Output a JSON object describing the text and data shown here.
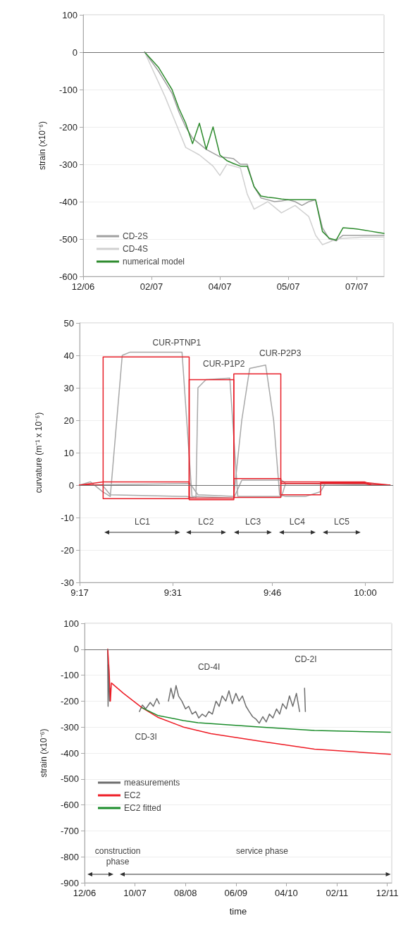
{
  "chart_data": [
    {
      "type": "line",
      "ylabel": "strain (x10⁻⁶)",
      "ylim": [
        -600,
        100
      ],
      "categories": [
        "12/06",
        null,
        null,
        null,
        null,
        null,
        null,
        null,
        null,
        null,
        "02/07",
        null,
        null,
        null,
        null,
        null,
        null,
        null,
        null,
        null,
        "04/07",
        null,
        null,
        null,
        null,
        null,
        null,
        null,
        null,
        null,
        "05/07",
        null,
        null,
        null,
        null,
        null,
        null,
        null,
        null,
        null,
        "07/07",
        null,
        null,
        null,
        null
      ],
      "yticks": [
        -600,
        -500,
        -400,
        -300,
        -200,
        -100,
        0,
        100
      ],
      "grid": "y",
      "legend": "bottom left",
      "marker": "none",
      "line_style": "solid",
      "ref_lines": [
        {
          "axis": "y",
          "value": 0,
          "label": null,
          "color": "#707070"
        }
      ],
      "series": [
        {
          "name": "CD-2S",
          "color": "#a0a0a0",
          "values": [
            null,
            null,
            null,
            null,
            null,
            null,
            null,
            null,
            null,
            0,
            -25,
            -50,
            -80,
            -110,
            -160,
            -200,
            -230,
            -245,
            -260,
            -270,
            -280,
            -282,
            -285,
            -300,
            -300,
            -360,
            -390,
            -395,
            -400,
            -398,
            -395,
            -400,
            -410,
            -400,
            -395,
            -470,
            -500,
            -505,
            -490,
            -490,
            -490,
            -490,
            -490,
            -490,
            -490
          ]
        },
        {
          "name": "CD-4S",
          "color": "#d0d0d0",
          "values": [
            null,
            null,
            null,
            null,
            null,
            null,
            null,
            null,
            null,
            0,
            -40,
            -80,
            -120,
            -165,
            -210,
            -255,
            -265,
            -275,
            -290,
            -305,
            -330,
            -300,
            -305,
            -310,
            -380,
            -420,
            -410,
            -400,
            -415,
            -430,
            -420,
            -410,
            -425,
            -440,
            -490,
            -515,
            -508,
            -500,
            -498,
            -497,
            -496,
            -495,
            -495,
            -495,
            -495
          ]
        },
        {
          "name": "numerical model",
          "color": "#2e8b2e",
          "values": [
            null,
            null,
            null,
            null,
            null,
            null,
            null,
            null,
            null,
            0,
            -20,
            -40,
            -70,
            -100,
            -150,
            -190,
            -245,
            -190,
            -260,
            -200,
            -275,
            -290,
            -298,
            -305,
            -305,
            -360,
            -385,
            -388,
            -390,
            -393,
            -395,
            -395,
            -395,
            -395,
            -395,
            -480,
            -498,
            -503,
            -470,
            -471,
            -473,
            -476,
            -479,
            -482,
            -485
          ]
        }
      ]
    },
    {
      "type": "line",
      "ylabel": "curvature (m⁻¹ x 10⁻⁶)",
      "xlim": [
        9.283,
        10.07
      ],
      "ylim": [
        -30,
        50
      ],
      "xticks": [
        {
          "value": 9.283,
          "label": "9:17"
        },
        {
          "value": 9.517,
          "label": "9:31"
        },
        {
          "value": 9.767,
          "label": "9:46"
        },
        {
          "value": 10.0,
          "label": "10:00"
        }
      ],
      "yticks": [
        -30,
        -20,
        -10,
        0,
        10,
        20,
        30,
        40,
        50
      ],
      "grid": "y",
      "marker": "none",
      "line_style": "solid",
      "ref_lines": [
        {
          "axis": "y",
          "value": 0,
          "label": null,
          "color": "#707070"
        }
      ],
      "annotations": [
        "CUR-PTNP1",
        "CUR-P1P2",
        "CUR-P2P3",
        "LC1",
        "LC2",
        "LC3",
        "LC4",
        "LC5"
      ],
      "series": [
        {
          "color": "#a8a8a8",
          "x": [
            9.283,
            9.31,
            9.34,
            9.36,
            9.39,
            9.41,
            9.54,
            9.565,
            9.67,
            9.69,
            9.79,
            9.8,
            10.0,
            10.062
          ],
          "values": [
            0,
            1,
            -2,
            -3.5,
            40,
            41,
            41,
            -3.5,
            -4,
            1.5,
            1.5,
            0.5,
            0.5,
            0
          ]
        },
        {
          "color": "#a8a8a8",
          "x": [
            9.283,
            9.34,
            9.36,
            9.55,
            9.575,
            9.58,
            9.6,
            9.66,
            9.68,
            9.79,
            9.8,
            10.062
          ],
          "values": [
            0,
            0,
            -3,
            -3.5,
            -4,
            30,
            32.5,
            33,
            -3.5,
            -3.5,
            0.5,
            0
          ]
        },
        {
          "color": "#a8a8a8",
          "x": [
            9.283,
            9.56,
            9.58,
            9.67,
            9.69,
            9.71,
            9.75,
            9.77,
            9.785,
            9.8,
            9.85,
            9.888,
            9.9,
            10.062
          ],
          "values": [
            0,
            0.5,
            -3,
            -3.5,
            20,
            36,
            37,
            20,
            -3,
            -3.5,
            -3.5,
            -2,
            0.5,
            0
          ]
        },
        {
          "color": "#e8202a",
          "x": [
            9.283,
            9.342,
            9.342,
            9.558,
            9.558,
            9.67,
            9.67,
            9.788,
            9.788,
            9.998,
            10.017,
            10.062
          ],
          "values": [
            0,
            0,
            39.5,
            39.5,
            -4.5,
            -4.5,
            2,
            2,
            0.5,
            0.5,
            0,
            0
          ]
        },
        {
          "color": "#e8202a",
          "x": [
            9.283,
            9.342,
            9.342,
            9.558,
            9.558,
            9.67,
            9.67,
            9.788,
            9.788,
            9.998,
            10.017,
            10.062
          ],
          "values": [
            0,
            0,
            -4.2,
            -4.2,
            32.5,
            32.5,
            -3.8,
            -3.8,
            1,
            1,
            0,
            0
          ]
        },
        {
          "color": "#e8202a",
          "x": [
            9.283,
            9.342,
            9.558,
            9.558,
            9.67,
            9.67,
            9.788,
            9.788,
            9.888,
            9.888,
            9.998,
            10.062
          ],
          "values": [
            0,
            1,
            1,
            -4,
            -4,
            34.3,
            34.3,
            -3,
            -3,
            0.8,
            0.8,
            0
          ]
        }
      ]
    },
    {
      "type": "line",
      "ylabel": "strain (x10⁻⁶)",
      "xlabel": "time",
      "xlim": [
        "2006-12-01",
        "2011-12-28"
      ],
      "ylim": [
        -900,
        100
      ],
      "xticks": [
        {
          "value": "2006-12",
          "label": "12/06"
        },
        {
          "value": "2007-10",
          "label": "10/07"
        },
        {
          "value": "2008-08",
          "label": "08/08"
        },
        {
          "value": "2009-06",
          "label": "06/09"
        },
        {
          "value": "2010-04",
          "label": "04/10"
        },
        {
          "value": "2011-02",
          "label": "02/11"
        },
        {
          "value": "2011-12",
          "label": "12/11"
        }
      ],
      "yticks": [
        -900,
        -800,
        -700,
        -600,
        -500,
        -400,
        -300,
        -200,
        -100,
        0,
        100
      ],
      "grid": "y",
      "legend": "bottom left",
      "marker": "none",
      "line_style": "solid",
      "ref_lines": [
        {
          "axis": "y",
          "value": 0,
          "label": null,
          "color": "#707070"
        }
      ],
      "annotations": [
        "CD-4I",
        "CD-2I",
        "CD-3I",
        "construction phase",
        "service phase"
      ],
      "series": [
        {
          "name": "measurements",
          "color": "#6e6e6e",
          "x": [
            "2007-04-19",
            "2007-04-22",
            "2007-04-25",
            "2007-05-01",
            "2007-05-07",
            "2007-06-01",
            "2007-10-28",
            "2007-11-15",
            "2007-12-05",
            "2008-01-01",
            "2008-01-20",
            "2008-02-10",
            "2008-02-25",
            "2008-03-20",
            "2008-04-20",
            "2008-05-05",
            "2008-05-20",
            "2008-06-05",
            "2008-06-20",
            "2008-07-10",
            "2008-08-01",
            "2008-08-20",
            "2008-09-10",
            "2008-10-01",
            "2008-10-20",
            "2008-11-10",
            "2008-12-01",
            "2008-12-20",
            "2009-01-10",
            "2009-02-01",
            "2009-02-20",
            "2009-03-10",
            "2009-04-01",
            "2009-04-20",
            "2009-05-10",
            "2009-06-01",
            "2009-06-20",
            "2009-07-10",
            "2009-08-01",
            "2009-08-20",
            "2009-09-10",
            "2009-10-01",
            "2009-10-20",
            "2009-11-10",
            "2009-12-01",
            "2009-12-20",
            "2010-01-10",
            "2010-02-01",
            "2010-02-20",
            "2010-03-10",
            "2010-04-01",
            "2010-04-20",
            "2010-05-10",
            "2010-06-01",
            "2010-06-20",
            "2010-07-10",
            "2010-07-20",
            "2010-07-25"
          ],
          "values": [
            0,
            -220,
            -60,
            -200,
            -150,
            null,
            -240,
            -215,
            -230,
            -205,
            -220,
            -190,
            -210,
            null,
            -200,
            -150,
            -190,
            -140,
            -180,
            -200,
            -230,
            -220,
            -250,
            -240,
            -265,
            -250,
            -260,
            -240,
            -250,
            -200,
            -220,
            -180,
            -200,
            -160,
            -210,
            -170,
            -200,
            -180,
            -220,
            -240,
            -260,
            -270,
            -285,
            -260,
            -280,
            -250,
            -265,
            -230,
            -250,
            -210,
            -230,
            -180,
            -220,
            -170,
            -240,
            null,
            -150,
            -240
          ]
        },
        {
          "name": "EC2",
          "color": "#ee1c25",
          "x": [
            "2007-04-20",
            "2007-04-28",
            "2007-05-06",
            "2007-05-12",
            "2007-07-24",
            "2007-11-12",
            "2008-02-15",
            "2008-07-20",
            "2009-01-01",
            "2009-11-01",
            "2010-09-18",
            "2011-12-20"
          ],
          "values": [
            0,
            -80,
            -200,
            -130,
            -170,
            -225,
            -262,
            -300,
            -325,
            -355,
            -385,
            -405
          ]
        },
        {
          "name": "EC2 fitted",
          "color": "#1a8c2a",
          "x": [
            "2007-11-12",
            "2008-02-15",
            "2008-07-20",
            "2008-10-15",
            "2009-11-01",
            "2010-09-18",
            "2011-12-20"
          ],
          "values": [
            -225,
            -255,
            -275,
            -283,
            -300,
            -313,
            -320
          ]
        }
      ]
    }
  ]
}
